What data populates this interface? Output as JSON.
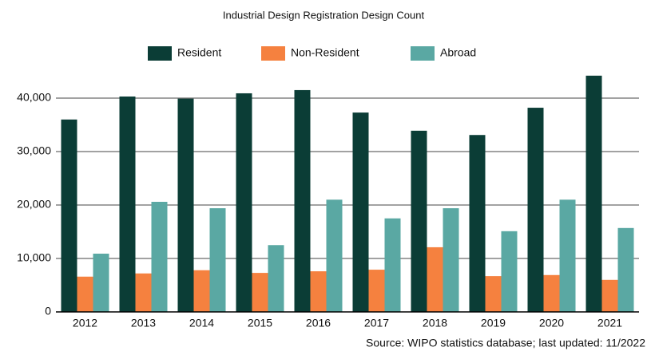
{
  "chart_data": {
    "type": "bar",
    "title": "Industrial Design Registration Design Count",
    "source": "Source: WIPO statistics database; last updated: 11/2022",
    "categories": [
      "2012",
      "2013",
      "2014",
      "2015",
      "2016",
      "2017",
      "2018",
      "2019",
      "2020",
      "2021"
    ],
    "series": [
      {
        "name": "Resident",
        "color": "#0b3d36",
        "values": [
          36000,
          40300,
          39900,
          40900,
          41500,
          37300,
          33900,
          33100,
          38200,
          44200
        ]
      },
      {
        "name": "Non-Resident",
        "color": "#f5813f",
        "values": [
          6600,
          7200,
          7800,
          7300,
          7600,
          7900,
          12100,
          6700,
          6900,
          6000
        ]
      },
      {
        "name": "Abroad",
        "color": "#5aa8a3",
        "values": [
          10900,
          20600,
          19400,
          12500,
          21000,
          17500,
          19400,
          15100,
          21000,
          15700
        ]
      }
    ],
    "ylim": [
      0,
      45000
    ],
    "yticks": [
      0,
      {
        "value": 10000,
        "label": "10,000"
      },
      {
        "value": 20000,
        "label": "20,000"
      },
      {
        "value": 30000,
        "label": "30,000"
      },
      {
        "value": 40000,
        "label": "40,000"
      }
    ],
    "grid": true,
    "legend": "top"
  }
}
